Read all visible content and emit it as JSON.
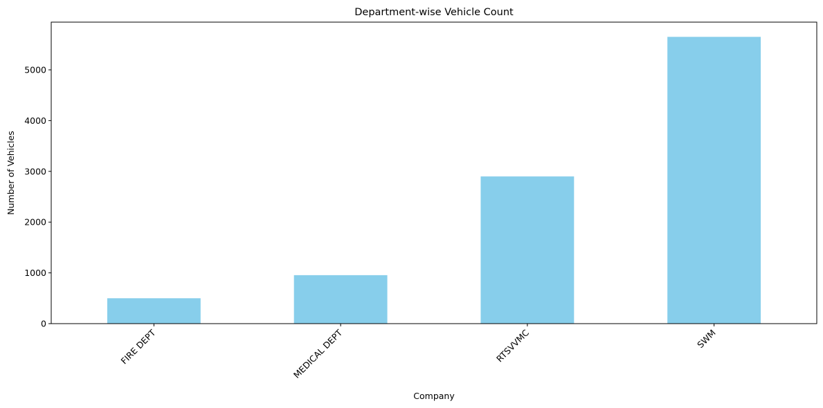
{
  "chart_data": {
    "type": "bar",
    "title": "Department-wise Vehicle Count",
    "xlabel": "Company",
    "ylabel": "Number of Vehicles",
    "categories": [
      "FIRE DEPT",
      "MEDICAL DEPT",
      "RTSVVMC",
      "SWM"
    ],
    "values": [
      500,
      955,
      2900,
      5650
    ],
    "ylim": [
      0,
      5940
    ],
    "yticks": [
      0,
      1000,
      2000,
      3000,
      4000,
      5000
    ],
    "grid": false,
    "legend": "none",
    "bar_color": "#87CEEB",
    "x_tick_rotation": -45
  }
}
